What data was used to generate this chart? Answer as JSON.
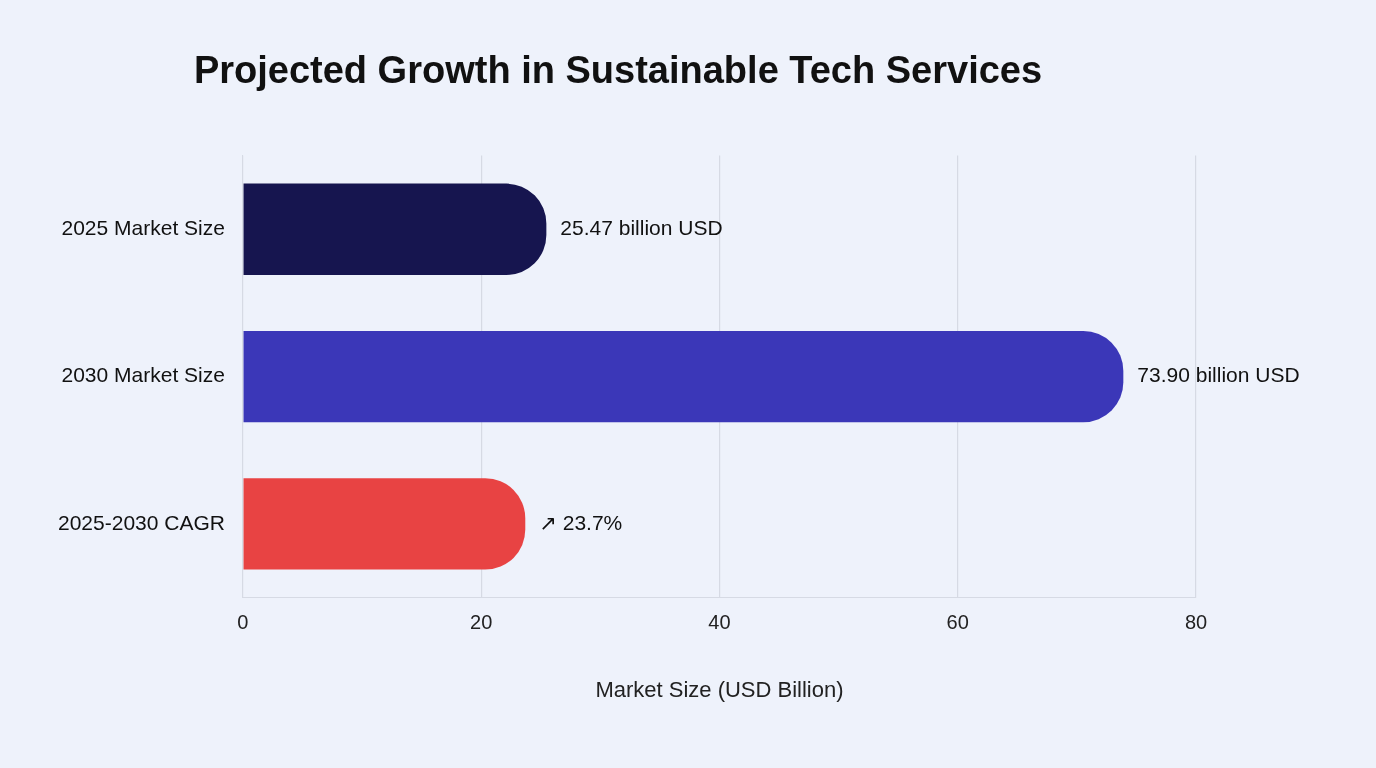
{
  "chart_data": {
    "type": "bar",
    "orientation": "horizontal",
    "title": "Projected Growth in Sustainable Tech Services",
    "xlabel": "Market Size (USD Billion)",
    "categories": [
      "2025 Market Size",
      "2030 Market Size",
      "2025-2030 CAGR"
    ],
    "values": [
      25.47,
      73.9,
      23.7
    ],
    "colors": [
      "#16154f",
      "#3b37b8",
      "#e84343"
    ],
    "value_labels": [
      "25.47 billion USD",
      "73.90 billion USD",
      "↗ 23.7%"
    ],
    "xlim": [
      0,
      80
    ],
    "xticks": [
      0,
      20,
      40,
      60,
      80
    ],
    "grid": "x",
    "legend": false
  }
}
